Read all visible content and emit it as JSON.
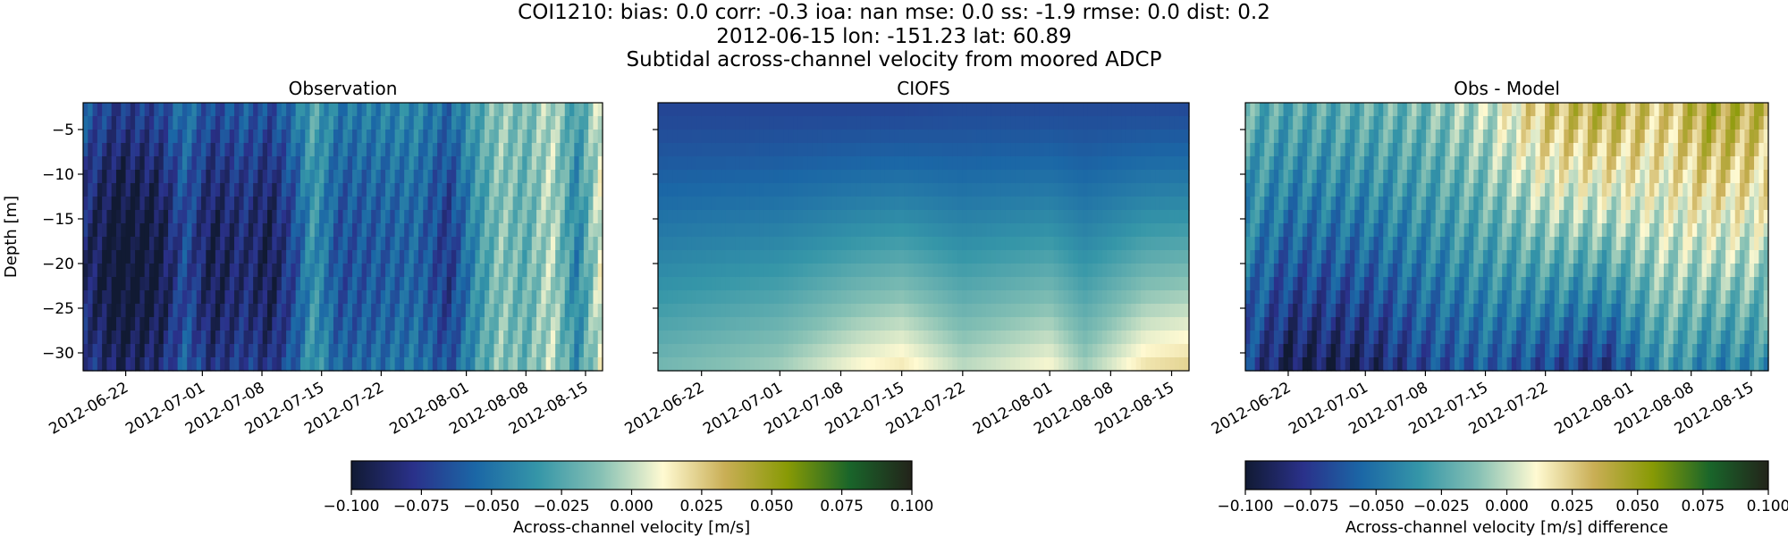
{
  "suptitle": {
    "line1": "COI1210: bias: 0.0  corr: -0.3  ioa: nan  mse: 0.0  ss: -1.9  rmse: 0.0  dist: 0.2",
    "line2": "2012-06-15 lon: -151.23 lat: 60.89",
    "line3": "Subtidal across-channel velocity from moored ADCP"
  },
  "chart_data": [
    {
      "type": "heatmap",
      "title": "Observation",
      "ylabel": "Depth [m]",
      "xlabel": "",
      "x_range": [
        "2012-06-17",
        "2012-08-17"
      ],
      "ylim": [
        -32,
        -2
      ],
      "x_ticks": [
        "2012-06-22",
        "2012-07-01",
        "2012-07-08",
        "2012-07-15",
        "2012-07-22",
        "2012-08-01",
        "2012-08-08",
        "2012-08-15"
      ],
      "y_ticks": [
        -5,
        -10,
        -15,
        -20,
        -25,
        -30
      ],
      "colormap": "delta",
      "clim": [
        -0.1,
        0.1
      ],
      "grid": false,
      "profile": [
        {
          "date": "2012-06-17",
          "v": -0.075
        },
        {
          "date": "2012-06-21",
          "v": -0.095
        },
        {
          "date": "2012-06-26",
          "v": -0.088
        },
        {
          "date": "2012-06-29",
          "v": -0.06
        },
        {
          "date": "2012-07-02",
          "v": -0.085
        },
        {
          "date": "2012-07-06",
          "v": -0.075
        },
        {
          "date": "2012-07-09",
          "v": -0.085
        },
        {
          "date": "2012-07-12",
          "v": -0.06
        },
        {
          "date": "2012-07-14",
          "v": -0.03
        },
        {
          "date": "2012-07-17",
          "v": -0.06
        },
        {
          "date": "2012-07-22",
          "v": -0.055
        },
        {
          "date": "2012-07-26",
          "v": -0.05
        },
        {
          "date": "2012-07-30",
          "v": -0.07
        },
        {
          "date": "2012-08-02",
          "v": -0.035
        },
        {
          "date": "2012-08-05",
          "v": -0.01
        },
        {
          "date": "2012-08-08",
          "v": -0.02
        },
        {
          "date": "2012-08-11",
          "v": 0.0
        },
        {
          "date": "2012-08-14",
          "v": -0.04
        },
        {
          "date": "2012-08-17",
          "v": 0.01
        }
      ]
    },
    {
      "type": "heatmap",
      "title": "CIOFS",
      "ylabel": "",
      "xlabel": "",
      "x_range": [
        "2012-06-17",
        "2012-08-17"
      ],
      "ylim": [
        -32,
        -2
      ],
      "x_ticks": [
        "2012-06-22",
        "2012-07-01",
        "2012-07-08",
        "2012-07-15",
        "2012-07-22",
        "2012-08-01",
        "2012-08-08",
        "2012-08-15"
      ],
      "y_ticks": [
        -5,
        -10,
        -15,
        -20,
        -25,
        -30
      ],
      "colormap": "delta",
      "clim": [
        -0.1,
        0.1
      ],
      "grid": false,
      "profile": [
        {
          "date": "2012-06-17",
          "surface": -0.07,
          "bottom": -0.015
        },
        {
          "date": "2012-07-01",
          "surface": -0.07,
          "bottom": -0.005
        },
        {
          "date": "2012-07-10",
          "surface": -0.07,
          "bottom": 0.012
        },
        {
          "date": "2012-07-15",
          "surface": -0.07,
          "bottom": 0.018
        },
        {
          "date": "2012-07-22",
          "surface": -0.068,
          "bottom": 0.0
        },
        {
          "date": "2012-08-01",
          "surface": -0.068,
          "bottom": 0.012
        },
        {
          "date": "2012-08-05",
          "surface": -0.068,
          "bottom": -0.005
        },
        {
          "date": "2012-08-12",
          "surface": -0.068,
          "bottom": 0.02
        },
        {
          "date": "2012-08-17",
          "surface": -0.068,
          "bottom": 0.025
        }
      ]
    },
    {
      "type": "heatmap",
      "title": "Obs - Model",
      "ylabel": "",
      "xlabel": "",
      "x_range": [
        "2012-06-17",
        "2012-08-17"
      ],
      "ylim": [
        -32,
        -2
      ],
      "x_ticks": [
        "2012-06-22",
        "2012-07-01",
        "2012-07-08",
        "2012-07-15",
        "2012-07-22",
        "2012-08-01",
        "2012-08-08",
        "2012-08-15"
      ],
      "y_ticks": [
        -5,
        -10,
        -15,
        -20,
        -25,
        -30
      ],
      "colormap": "delta",
      "clim": [
        -0.1,
        0.1
      ],
      "grid": false,
      "profile": [
        {
          "date": "2012-06-17",
          "surface": -0.02,
          "bottom": -0.07
        },
        {
          "date": "2012-06-22",
          "surface": -0.025,
          "bottom": -0.095
        },
        {
          "date": "2012-07-01",
          "surface": -0.02,
          "bottom": -0.09
        },
        {
          "date": "2012-07-08",
          "surface": -0.015,
          "bottom": -0.07
        },
        {
          "date": "2012-07-15",
          "surface": 0.0,
          "bottom": -0.06
        },
        {
          "date": "2012-07-22",
          "surface": 0.03,
          "bottom": -0.07
        },
        {
          "date": "2012-07-29",
          "surface": 0.04,
          "bottom": -0.08
        },
        {
          "date": "2012-08-05",
          "surface": 0.025,
          "bottom": -0.03
        },
        {
          "date": "2012-08-10",
          "surface": 0.045,
          "bottom": -0.045
        },
        {
          "date": "2012-08-17",
          "surface": 0.035,
          "bottom": -0.04
        }
      ]
    }
  ],
  "colorbars": [
    {
      "label": "Across-channel velocity [m/s]",
      "ticks": [
        "−0.100",
        "−0.075",
        "−0.050",
        "−0.025",
        "0.000",
        "0.025",
        "0.050",
        "0.075",
        "0.100"
      ]
    },
    {
      "label": "Across-channel velocity [m/s] difference",
      "ticks": [
        "−0.100",
        "−0.075",
        "−0.050",
        "−0.025",
        "0.000",
        "0.025",
        "0.050",
        "0.075",
        "0.100"
      ]
    }
  ],
  "y_tick_labels": [
    "−5",
    "−10",
    "−15",
    "−20",
    "−25",
    "−30"
  ],
  "colors": {
    "delta_stops": [
      "#111a33",
      "#2a318a",
      "#1b67a6",
      "#3596a8",
      "#85c0b4",
      "#fffad2",
      "#c9ae55",
      "#889a05",
      "#19652a",
      "#23231a"
    ]
  }
}
